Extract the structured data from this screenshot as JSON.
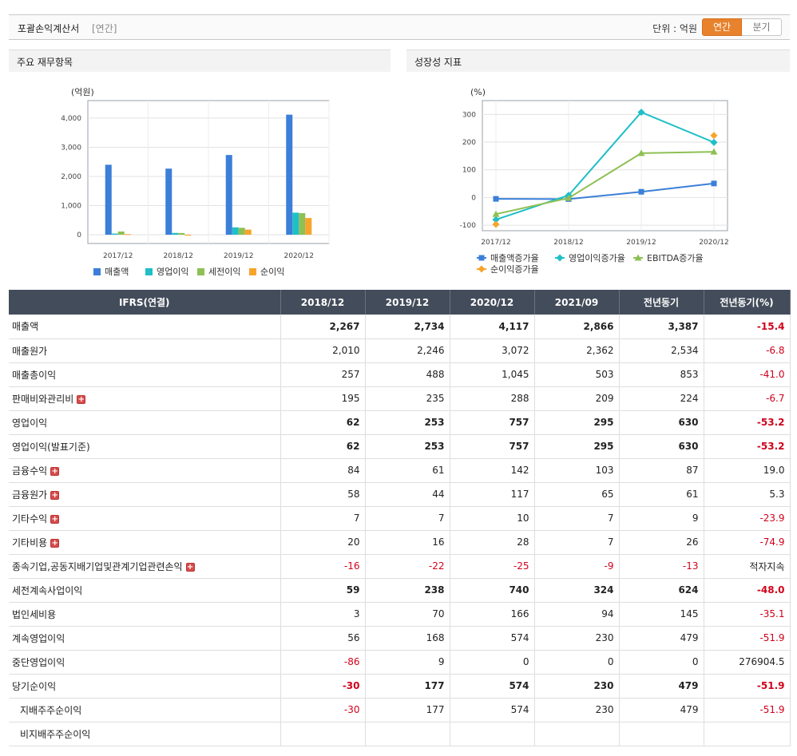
{
  "header": {
    "title": "포괄손익계산서",
    "period_tag": "[연간]",
    "unit_label": "단위 : 억원",
    "toggle_annual": "연간",
    "toggle_quarter": "분기"
  },
  "panels": {
    "left_title": "주요 재무항목",
    "right_title": "성장성 지표"
  },
  "colors": {
    "revenue": "#3b7fd8",
    "op_income": "#1fbfc7",
    "pretax": "#8ec054",
    "net": "#f7a42c",
    "header_dark": "#434c5a",
    "accent_orange": "#e8822d",
    "negative": "#d0021b"
  },
  "chart_data": [
    {
      "type": "bar",
      "ylabel": "(억원)",
      "categories": [
        "2017/12",
        "2018/12",
        "2019/12",
        "2020/12"
      ],
      "ylim": [
        -300,
        4600
      ],
      "yticks": [
        0,
        1000,
        2000,
        3000,
        4000
      ],
      "ytick_labels": [
        "0",
        "1,000",
        "2,000",
        "3,000",
        "4,000"
      ],
      "grid": true,
      "legend_position": "bottom",
      "series": [
        {
          "name": "매출액",
          "color": "#3b7fd8",
          "values": [
            2400,
            2267,
            2734,
            4117
          ]
        },
        {
          "name": "영업이익",
          "color": "#1fbfc7",
          "values": [
            40,
            62,
            253,
            757
          ]
        },
        {
          "name": "세전이익",
          "color": "#8ec054",
          "values": [
            110,
            59,
            238,
            740
          ]
        },
        {
          "name": "순이익",
          "color": "#f7a42c",
          "values": [
            20,
            -30,
            177,
            574
          ]
        }
      ]
    },
    {
      "type": "line",
      "ylabel": "(%)",
      "categories": [
        "2017/12",
        "2018/12",
        "2019/12",
        "2020/12"
      ],
      "ylim": [
        -120,
        350
      ],
      "yticks": [
        -100,
        0,
        100,
        200,
        300
      ],
      "ytick_labels": [
        "-100",
        "0",
        "100",
        "200",
        "300"
      ],
      "grid": true,
      "legend_position": "bottom",
      "series": [
        {
          "name": "매출액증가율",
          "color": "#3b7fd8",
          "marker": "square",
          "values": [
            -5,
            -5.6,
            20.6,
            50.6
          ]
        },
        {
          "name": "영업이익증가율",
          "color": "#1fbfc7",
          "marker": "diamond",
          "values": [
            -80,
            8,
            308,
            199
          ]
        },
        {
          "name": "EBITDA증가율",
          "color": "#8ec054",
          "marker": "triangle",
          "values": [
            -60,
            -2,
            160,
            165
          ]
        },
        {
          "name": "순이익증가율",
          "color": "#f7a42c",
          "marker": "diamond",
          "values": [
            -97,
            null,
            null,
            224
          ]
        }
      ]
    }
  ],
  "table": {
    "columns": [
      "IFRS(연결)",
      "2018/12",
      "2019/12",
      "2020/12",
      "2021/09",
      "전년동기",
      "전년동기(%)"
    ],
    "rows": [
      {
        "label": "매출액",
        "bold": true,
        "plus": false,
        "indent": false,
        "values": [
          "2,267",
          "2,734",
          "4,117",
          "2,866",
          "3,387",
          "-15.4"
        ],
        "neg": [
          false,
          false,
          false,
          false,
          false,
          true
        ]
      },
      {
        "label": "매출원가",
        "bold": false,
        "plus": false,
        "indent": false,
        "values": [
          "2,010",
          "2,246",
          "3,072",
          "2,362",
          "2,534",
          "-6.8"
        ],
        "neg": [
          false,
          false,
          false,
          false,
          false,
          true
        ]
      },
      {
        "label": "매출총이익",
        "bold": false,
        "plus": false,
        "indent": false,
        "values": [
          "257",
          "488",
          "1,045",
          "503",
          "853",
          "-41.0"
        ],
        "neg": [
          false,
          false,
          false,
          false,
          false,
          true
        ]
      },
      {
        "label": "판매비와관리비",
        "bold": false,
        "plus": true,
        "indent": false,
        "values": [
          "195",
          "235",
          "288",
          "209",
          "224",
          "-6.7"
        ],
        "neg": [
          false,
          false,
          false,
          false,
          false,
          true
        ]
      },
      {
        "label": "영업이익",
        "bold": true,
        "plus": false,
        "indent": false,
        "values": [
          "62",
          "253",
          "757",
          "295",
          "630",
          "-53.2"
        ],
        "neg": [
          false,
          false,
          false,
          false,
          false,
          true
        ]
      },
      {
        "label": "영업이익(발표기준)",
        "bold": true,
        "plus": false,
        "indent": false,
        "values": [
          "62",
          "253",
          "757",
          "295",
          "630",
          "-53.2"
        ],
        "neg": [
          false,
          false,
          false,
          false,
          false,
          true
        ]
      },
      {
        "label": "금융수익",
        "bold": false,
        "plus": true,
        "indent": false,
        "values": [
          "84",
          "61",
          "142",
          "103",
          "87",
          "19.0"
        ],
        "neg": [
          false,
          false,
          false,
          false,
          false,
          false
        ]
      },
      {
        "label": "금융원가",
        "bold": false,
        "plus": true,
        "indent": false,
        "values": [
          "58",
          "44",
          "117",
          "65",
          "61",
          "5.3"
        ],
        "neg": [
          false,
          false,
          false,
          false,
          false,
          false
        ]
      },
      {
        "label": "기타수익",
        "bold": false,
        "plus": true,
        "indent": false,
        "values": [
          "7",
          "7",
          "10",
          "7",
          "9",
          "-23.9"
        ],
        "neg": [
          false,
          false,
          false,
          false,
          false,
          true
        ]
      },
      {
        "label": "기타비용",
        "bold": false,
        "plus": true,
        "indent": false,
        "values": [
          "20",
          "16",
          "28",
          "7",
          "26",
          "-74.9"
        ],
        "neg": [
          false,
          false,
          false,
          false,
          false,
          true
        ]
      },
      {
        "label": "종속기업,공동지배기업및관계기업관련손익",
        "bold": false,
        "plus": true,
        "indent": false,
        "values": [
          "-16",
          "-22",
          "-25",
          "-9",
          "-13",
          "적자지속"
        ],
        "neg": [
          true,
          true,
          true,
          true,
          true,
          false
        ]
      },
      {
        "label": "세전계속사업이익",
        "bold": true,
        "plus": false,
        "indent": false,
        "values": [
          "59",
          "238",
          "740",
          "324",
          "624",
          "-48.0"
        ],
        "neg": [
          false,
          false,
          false,
          false,
          false,
          true
        ]
      },
      {
        "label": "법인세비용",
        "bold": false,
        "plus": false,
        "indent": false,
        "values": [
          "3",
          "70",
          "166",
          "94",
          "145",
          "-35.1"
        ],
        "neg": [
          false,
          false,
          false,
          false,
          false,
          true
        ]
      },
      {
        "label": "계속영업이익",
        "bold": false,
        "plus": false,
        "indent": false,
        "values": [
          "56",
          "168",
          "574",
          "230",
          "479",
          "-51.9"
        ],
        "neg": [
          false,
          false,
          false,
          false,
          false,
          true
        ]
      },
      {
        "label": "중단영업이익",
        "bold": false,
        "plus": false,
        "indent": false,
        "values": [
          "-86",
          "9",
          "0",
          "0",
          "0",
          "276904.5"
        ],
        "neg": [
          true,
          false,
          false,
          false,
          false,
          false
        ]
      },
      {
        "label": "당기순이익",
        "bold": true,
        "plus": false,
        "indent": false,
        "values": [
          "-30",
          "177",
          "574",
          "230",
          "479",
          "-51.9"
        ],
        "neg": [
          true,
          false,
          false,
          false,
          false,
          true
        ]
      },
      {
        "label": "지배주주순이익",
        "bold": false,
        "plus": false,
        "indent": true,
        "values": [
          "-30",
          "177",
          "574",
          "230",
          "479",
          "-51.9"
        ],
        "neg": [
          true,
          false,
          false,
          false,
          false,
          true
        ]
      },
      {
        "label": "비지배주주순이익",
        "bold": false,
        "plus": false,
        "indent": true,
        "values": [
          "",
          "",
          "",
          "",
          "",
          ""
        ],
        "neg": [
          false,
          false,
          false,
          false,
          false,
          false
        ]
      }
    ]
  }
}
